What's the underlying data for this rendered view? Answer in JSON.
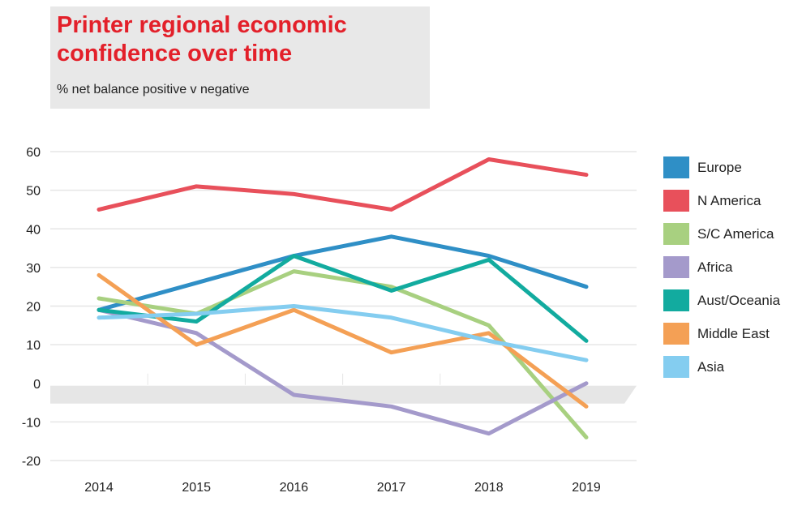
{
  "chart_data": {
    "type": "line",
    "title": "Printer regional economic confidence over time",
    "subtitle": "% net balance positive v negative",
    "x": [
      "2014",
      "2015",
      "2016",
      "2017",
      "2018",
      "2019"
    ],
    "ylim": [
      -20,
      60
    ],
    "yticks": [
      "60",
      "50",
      "40",
      "30",
      "20",
      "10",
      "0",
      "-10",
      "-20"
    ],
    "grid": true,
    "legend_position": "right",
    "series": [
      {
        "name": "Europe",
        "color": "#2f8fc6",
        "values": [
          19,
          26,
          33,
          38,
          33,
          25
        ]
      },
      {
        "name": "N America",
        "color": "#e8505b",
        "values": [
          45,
          51,
          49,
          45,
          58,
          54
        ]
      },
      {
        "name": "S/C America",
        "color": "#a8d080",
        "values": [
          22,
          18,
          29,
          25,
          15,
          -14
        ]
      },
      {
        "name": "Africa",
        "color": "#a49acb",
        "values": [
          19,
          13,
          -3,
          -6,
          -13,
          0
        ]
      },
      {
        "name": "Aust/Oceania",
        "color": "#12ab9f",
        "values": [
          19,
          16,
          33,
          24,
          32,
          11
        ]
      },
      {
        "name": "Middle East",
        "color": "#f4a055",
        "values": [
          28,
          10,
          19,
          8,
          13,
          -6
        ]
      },
      {
        "name": "Asia",
        "color": "#84cdf0",
        "values": [
          17,
          18,
          20,
          17,
          11,
          6
        ]
      }
    ]
  }
}
